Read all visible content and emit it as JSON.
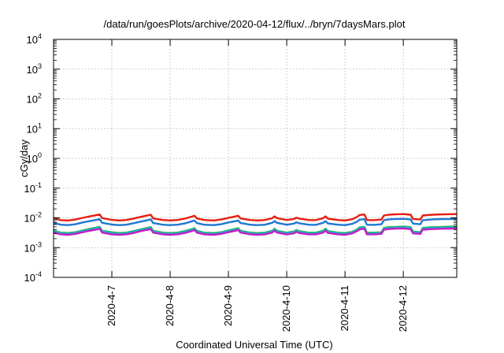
{
  "chart_data": {
    "type": "line",
    "title": "/data/run/goesPlots/archive/2020-04-12/flux/../bryn/7daysMars.plot",
    "xlabel": "Coordinated Universal Time (UTC)",
    "ylabel": "cGy/day",
    "yscale": "log",
    "ylim": [
      0.0001,
      10000
    ],
    "xlim": [
      "2020-04-06T00:00",
      "2020-04-12T22:00"
    ],
    "grid": true,
    "x_ticks": [
      "2020-4-7",
      "2020-4-8",
      "2020-4-9",
      "2020-4-10",
      "2020-4-11",
      "2020-4-12"
    ],
    "y_ticks": [
      {
        "base": "10",
        "exp": "-4"
      },
      {
        "base": "10",
        "exp": "-3"
      },
      {
        "base": "10",
        "exp": "-2"
      },
      {
        "base": "10",
        "exp": "-1"
      },
      {
        "base": "10",
        "exp": "0"
      },
      {
        "base": "10",
        "exp": "1"
      },
      {
        "base": "10",
        "exp": "2"
      },
      {
        "base": "10",
        "exp": "3"
      },
      {
        "base": "10",
        "exp": "4"
      }
    ],
    "x": [
      "2020-04-06T00:00",
      "2020-04-06T03:00",
      "2020-04-06T06:00",
      "2020-04-06T09:00",
      "2020-04-06T12:00",
      "2020-04-06T15:00",
      "2020-04-06T18:00",
      "2020-04-06T19:00",
      "2020-04-06T20:00",
      "2020-04-07T00:00",
      "2020-04-07T03:00",
      "2020-04-07T06:00",
      "2020-04-07T09:00",
      "2020-04-07T12:00",
      "2020-04-07T15:00",
      "2020-04-07T16:00",
      "2020-04-07T17:00",
      "2020-04-07T21:00",
      "2020-04-08T00:00",
      "2020-04-08T03:00",
      "2020-04-08T06:00",
      "2020-04-08T09:00",
      "2020-04-08T10:00",
      "2020-04-08T11:00",
      "2020-04-08T14:00",
      "2020-04-08T18:00",
      "2020-04-08T21:00",
      "2020-04-09T00:00",
      "2020-04-09T03:00",
      "2020-04-09T04:00",
      "2020-04-09T05:00",
      "2020-04-09T09:00",
      "2020-04-09T12:00",
      "2020-04-09T15:00",
      "2020-04-09T18:00",
      "2020-04-09T19:00",
      "2020-04-09T20:00",
      "2020-04-10T00:00",
      "2020-04-10T03:00",
      "2020-04-10T04:00",
      "2020-04-10T05:00",
      "2020-04-10T09:00",
      "2020-04-10T12:00",
      "2020-04-10T15:00",
      "2020-04-10T16:00",
      "2020-04-10T17:00",
      "2020-04-10T21:00",
      "2020-04-11T00:00",
      "2020-04-11T03:00",
      "2020-04-11T05:00",
      "2020-04-11T06:00",
      "2020-04-11T08:00",
      "2020-04-11T09:00",
      "2020-04-11T12:00",
      "2020-04-11T15:00",
      "2020-04-11T16:00",
      "2020-04-11T18:00",
      "2020-04-11T21:00",
      "2020-04-12T00:00",
      "2020-04-12T03:00",
      "2020-04-12T04:00",
      "2020-04-12T07:00",
      "2020-04-12T08:00",
      "2020-04-12T12:00",
      "2020-04-12T16:00",
      "2020-04-12T20:00",
      "2020-04-12T22:00"
    ],
    "series": [
      {
        "color": "#e51e10",
        "values": [
          0.0098,
          0.0084,
          0.0082,
          0.0088,
          0.01,
          0.0112,
          0.0125,
          0.013,
          0.0098,
          0.0086,
          0.0082,
          0.0085,
          0.0095,
          0.0108,
          0.0122,
          0.0128,
          0.0096,
          0.0085,
          0.0082,
          0.0085,
          0.0094,
          0.011,
          0.0118,
          0.0096,
          0.0085,
          0.0082,
          0.0088,
          0.01,
          0.0112,
          0.0118,
          0.0096,
          0.0085,
          0.0082,
          0.0085,
          0.0097,
          0.0112,
          0.0098,
          0.0085,
          0.0092,
          0.0102,
          0.0095,
          0.0085,
          0.0084,
          0.0098,
          0.0112,
          0.0094,
          0.0085,
          0.0082,
          0.009,
          0.0108,
          0.0125,
          0.013,
          0.0085,
          0.0084,
          0.0088,
          0.012,
          0.0128,
          0.0132,
          0.0134,
          0.0128,
          0.0092,
          0.0088,
          0.012,
          0.0128,
          0.0131,
          0.0133,
          0.0134
        ]
      },
      {
        "color": "#1f78d1",
        "values": [
          0.0068,
          0.0059,
          0.0057,
          0.0061,
          0.007,
          0.0078,
          0.0087,
          0.009,
          0.0068,
          0.006,
          0.0057,
          0.0059,
          0.0066,
          0.0075,
          0.0085,
          0.0089,
          0.0067,
          0.0059,
          0.0057,
          0.0059,
          0.0065,
          0.0077,
          0.0082,
          0.0067,
          0.0059,
          0.0057,
          0.0061,
          0.007,
          0.0078,
          0.0082,
          0.0067,
          0.0059,
          0.0057,
          0.0059,
          0.0068,
          0.0078,
          0.0068,
          0.0059,
          0.0064,
          0.0071,
          0.0066,
          0.0059,
          0.0058,
          0.0068,
          0.0078,
          0.0065,
          0.0059,
          0.0057,
          0.0063,
          0.0075,
          0.0087,
          0.009,
          0.0059,
          0.0058,
          0.0061,
          0.0084,
          0.0089,
          0.0092,
          0.0093,
          0.0089,
          0.0064,
          0.0061,
          0.0084,
          0.0089,
          0.0091,
          0.0092,
          0.0093
        ]
      },
      {
        "color": "#2fb35a",
        "values": [
          0.0037,
          0.0032,
          0.0031,
          0.0033,
          0.0038,
          0.0043,
          0.0048,
          0.005,
          0.0037,
          0.0033,
          0.0031,
          0.0032,
          0.0036,
          0.0041,
          0.0047,
          0.0049,
          0.0037,
          0.0032,
          0.0031,
          0.0032,
          0.0036,
          0.0042,
          0.0045,
          0.0037,
          0.0032,
          0.0031,
          0.0033,
          0.0038,
          0.0043,
          0.0045,
          0.0037,
          0.0032,
          0.0031,
          0.0032,
          0.0037,
          0.0043,
          0.0037,
          0.0032,
          0.0035,
          0.0039,
          0.0036,
          0.0032,
          0.0032,
          0.0037,
          0.0043,
          0.0036,
          0.0032,
          0.0031,
          0.0034,
          0.0041,
          0.0048,
          0.005,
          0.0032,
          0.0032,
          0.0033,
          0.0046,
          0.0049,
          0.005,
          0.0051,
          0.0049,
          0.0035,
          0.0033,
          0.0046,
          0.0049,
          0.005,
          0.0051,
          0.0051
        ]
      },
      {
        "color": "#17b3c4",
        "values": [
          0.0035,
          0.003,
          0.0029,
          0.0031,
          0.0036,
          0.004,
          0.0045,
          0.0047,
          0.0035,
          0.0031,
          0.0029,
          0.003,
          0.0034,
          0.0039,
          0.0044,
          0.0046,
          0.0035,
          0.003,
          0.0029,
          0.003,
          0.0034,
          0.004,
          0.0042,
          0.0035,
          0.003,
          0.0029,
          0.0031,
          0.0036,
          0.004,
          0.0042,
          0.0035,
          0.003,
          0.0029,
          0.003,
          0.0035,
          0.004,
          0.0035,
          0.003,
          0.0033,
          0.0037,
          0.0034,
          0.003,
          0.003,
          0.0035,
          0.004,
          0.0034,
          0.003,
          0.0029,
          0.0032,
          0.0039,
          0.0045,
          0.0047,
          0.003,
          0.003,
          0.0031,
          0.0043,
          0.0046,
          0.0047,
          0.0048,
          0.0046,
          0.0033,
          0.0031,
          0.0043,
          0.0046,
          0.0047,
          0.0048,
          0.0048
        ]
      },
      {
        "color": "#c41ec4",
        "values": [
          0.0032,
          0.0028,
          0.0027,
          0.0029,
          0.0033,
          0.0037,
          0.0041,
          0.0043,
          0.0032,
          0.0028,
          0.0027,
          0.0028,
          0.0031,
          0.0036,
          0.004,
          0.0042,
          0.0032,
          0.0028,
          0.0027,
          0.0028,
          0.0031,
          0.0036,
          0.0039,
          0.0032,
          0.0028,
          0.0027,
          0.0029,
          0.0033,
          0.0037,
          0.0039,
          0.0032,
          0.0028,
          0.0027,
          0.0028,
          0.0032,
          0.0037,
          0.0032,
          0.0028,
          0.003,
          0.0034,
          0.0031,
          0.0028,
          0.0028,
          0.0032,
          0.0037,
          0.0031,
          0.0028,
          0.0027,
          0.003,
          0.0036,
          0.0041,
          0.0043,
          0.0028,
          0.0028,
          0.0029,
          0.004,
          0.0042,
          0.0044,
          0.0044,
          0.0042,
          0.003,
          0.0029,
          0.004,
          0.0042,
          0.0043,
          0.0044,
          0.0044
        ]
      }
    ]
  }
}
